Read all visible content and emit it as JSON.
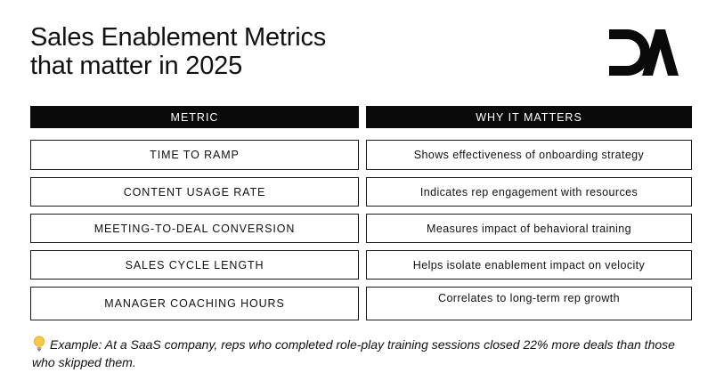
{
  "title": {
    "line1": "Sales Enablement Metrics",
    "line2": "that matter in 2025"
  },
  "logo": {
    "icon": "da-logo-icon",
    "color": "#0a0a0a"
  },
  "table": {
    "headers": {
      "metric": "METRIC",
      "why": "WHY IT MATTERS"
    },
    "rows": [
      {
        "metric": "TIME TO RAMP",
        "why": "Shows effectiveness of onboarding strategy"
      },
      {
        "metric": "CONTENT USAGE RATE",
        "why": "Indicates rep engagement with resources"
      },
      {
        "metric": "MEETING-TO-DEAL CONVERSION",
        "why": "Measures impact of behavioral training"
      },
      {
        "metric": "SALES CYCLE LENGTH",
        "why": "Helps isolate enablement impact on velocity"
      },
      {
        "metric": "MANAGER COACHING HOURS",
        "why": "Correlates to long-term rep growth"
      }
    ]
  },
  "note": {
    "icon": "lightbulb-icon",
    "text": "Example: At a SaaS company, reps who completed role-play training sessions closed 22% more deals than those who skipped them."
  }
}
